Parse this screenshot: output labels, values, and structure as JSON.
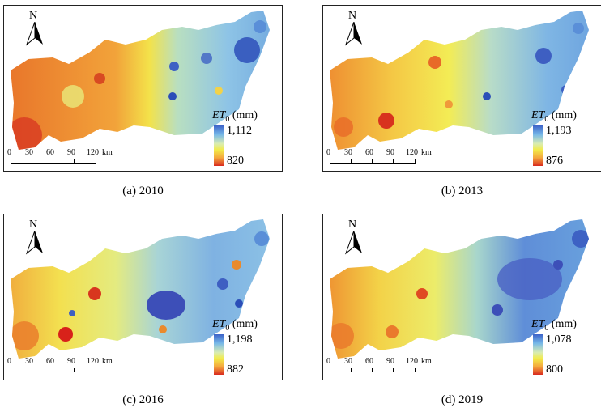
{
  "panels": [
    {
      "caption": "(a) 2010",
      "legend_title": "ET",
      "legend_sub": "0",
      "legend_unit": " (mm)",
      "legend_max": "1,112",
      "legend_min": "820"
    },
    {
      "caption": "(b) 2013",
      "legend_title": "ET",
      "legend_sub": "0",
      "legend_unit": " (mm)",
      "legend_max": "1,193",
      "legend_min": "876"
    },
    {
      "caption": "(c) 2016",
      "legend_title": "ET",
      "legend_sub": "0",
      "legend_unit": " (mm)",
      "legend_max": "1,198",
      "legend_min": "882"
    },
    {
      "caption": "(d) 2019",
      "legend_title": "ET",
      "legend_sub": "0",
      "legend_unit": " (mm)",
      "legend_max": "1,078",
      "legend_min": "800"
    }
  ],
  "north_label": "N",
  "scale": {
    "t0": "0",
    "t1": "30",
    "t2": "60",
    "t3": "90",
    "t4": "120",
    "unit": "km"
  },
  "colors": {
    "high": "#3c63c9",
    "mid": "#f2eb4a",
    "low": "#d82a1e"
  }
}
